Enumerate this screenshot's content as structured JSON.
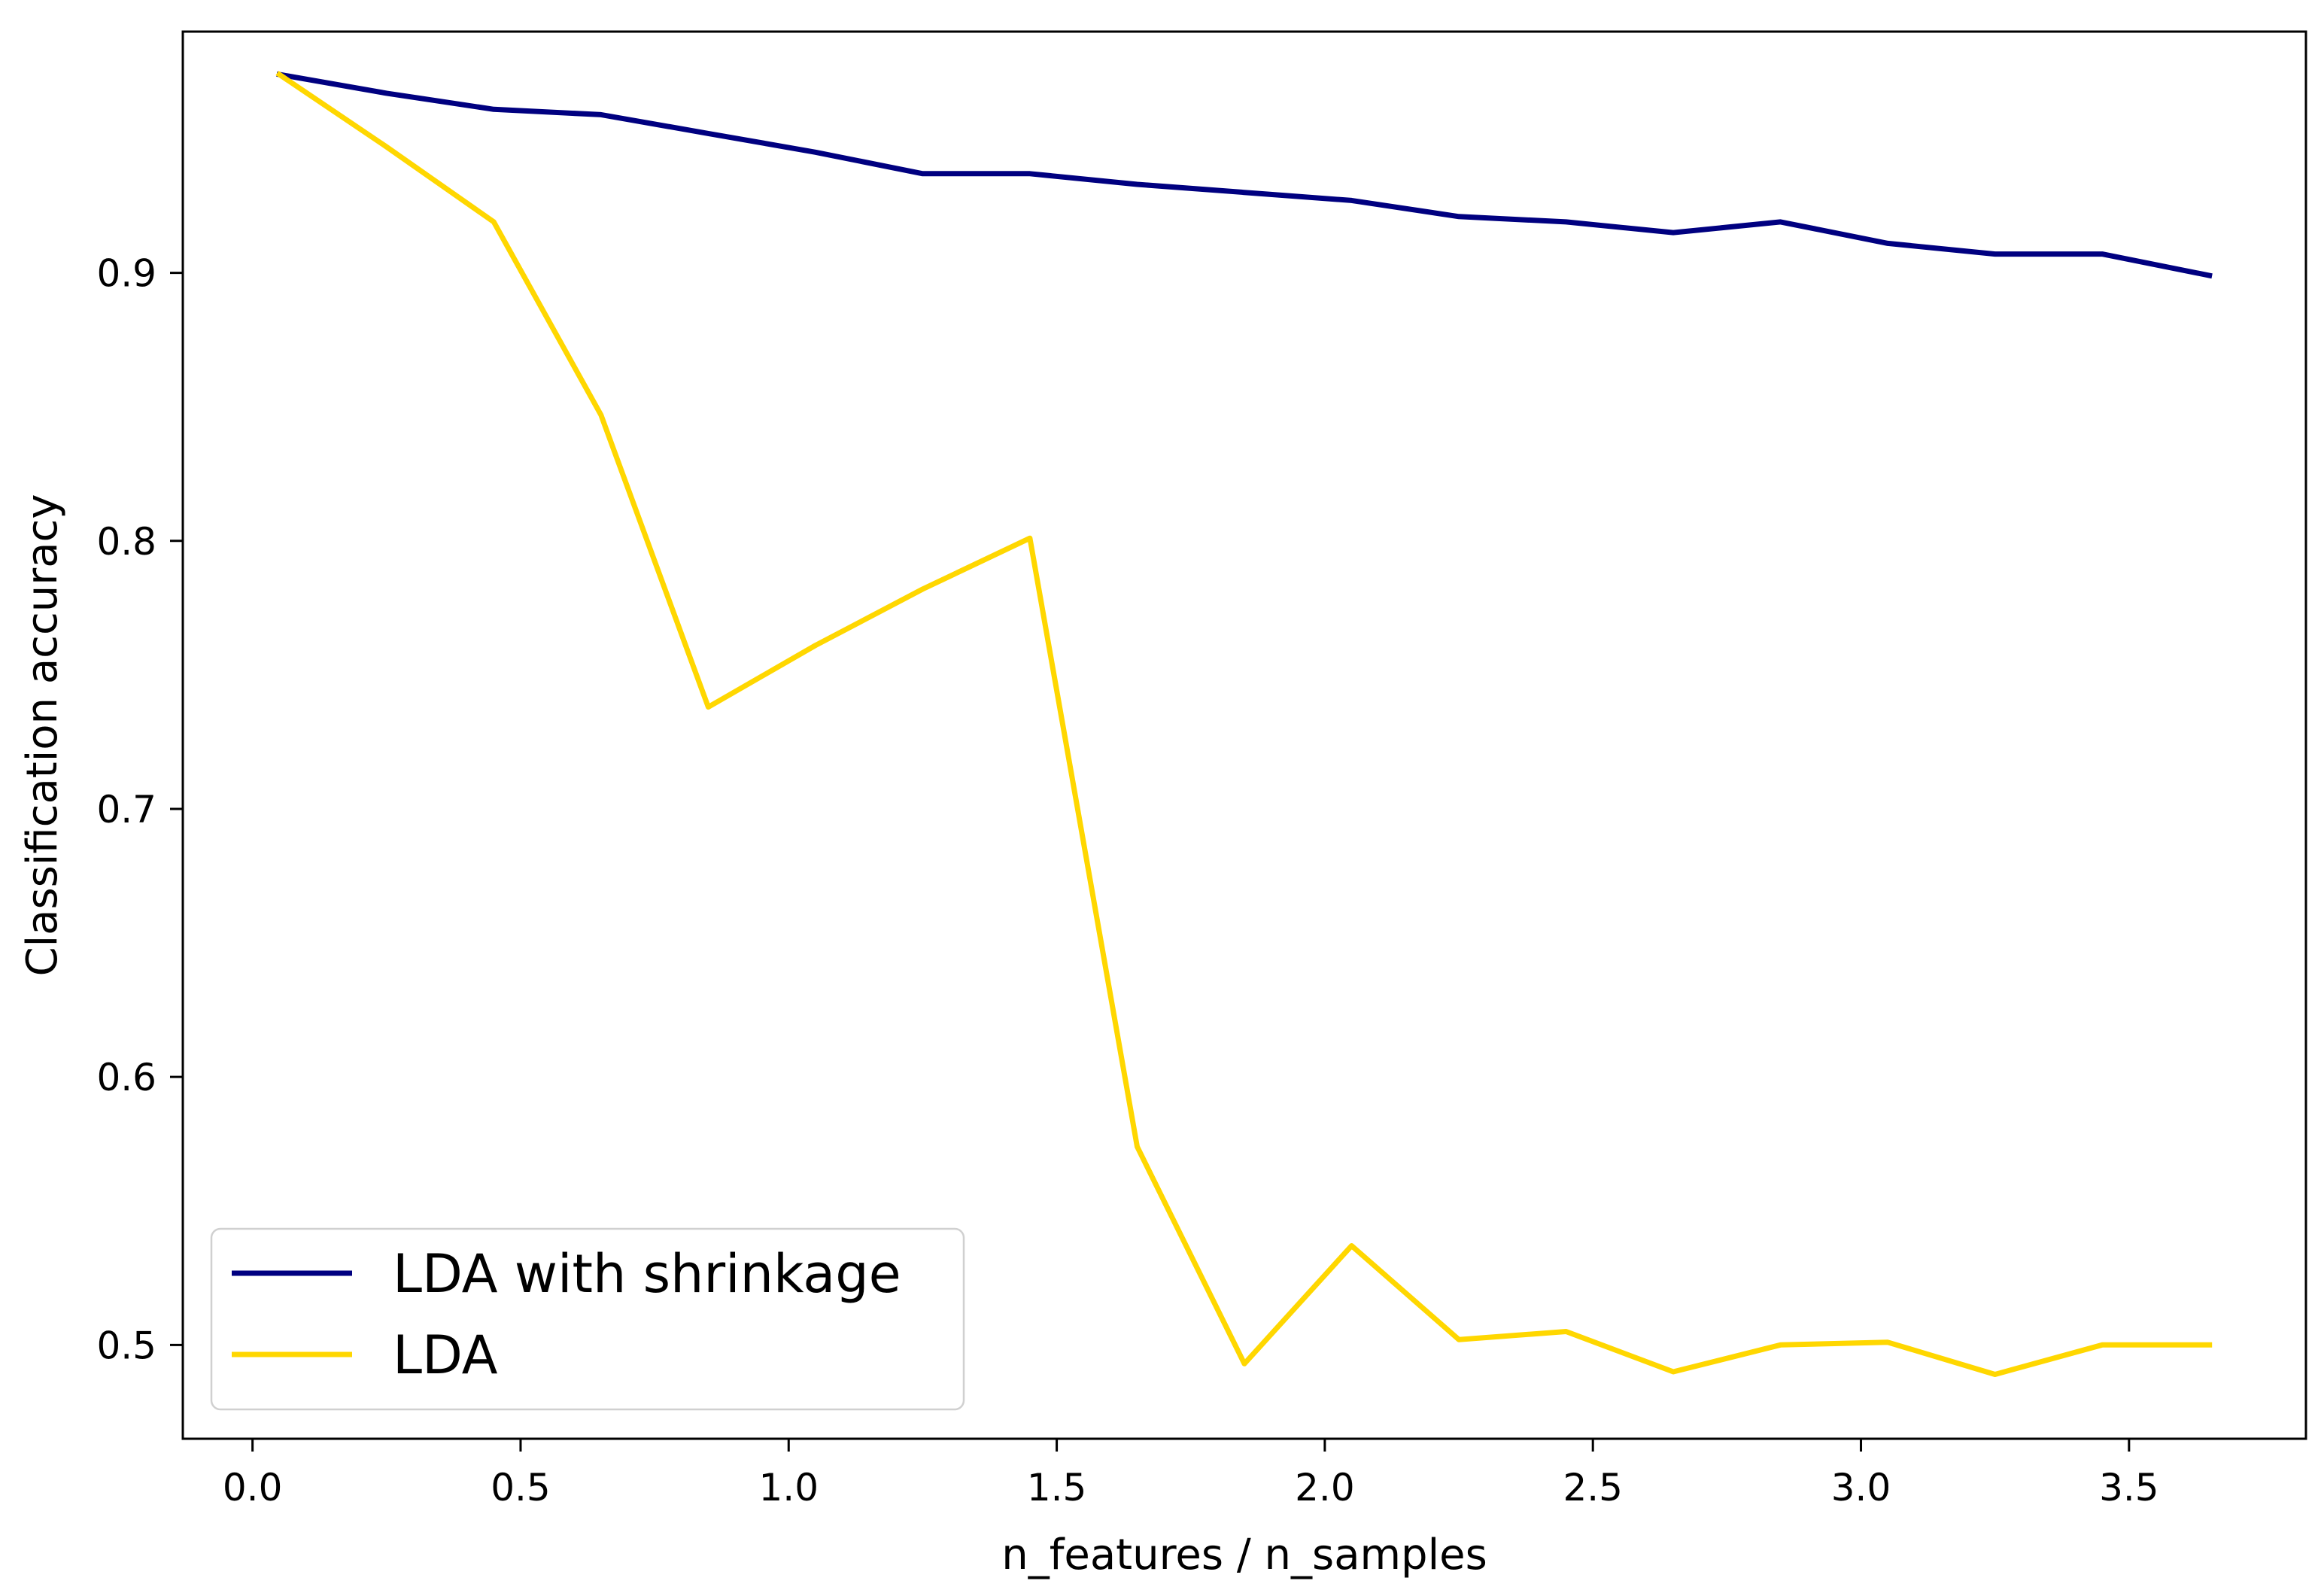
{
  "chart_data": {
    "type": "line",
    "title": "",
    "xlabel": "n_features / n_samples",
    "ylabel": "Classification accuracy",
    "xlim": [
      -0.13,
      3.83
    ],
    "ylim": [
      0.465,
      0.99
    ],
    "xticks": [
      0.0,
      0.5,
      1.0,
      1.5,
      2.0,
      2.5,
      3.0,
      3.5
    ],
    "xtick_labels": [
      "0.0",
      "0.5",
      "1.0",
      "1.5",
      "2.0",
      "2.5",
      "3.0",
      "3.5"
    ],
    "yticks": [
      0.5,
      0.6,
      0.7,
      0.8,
      0.9
    ],
    "ytick_labels": [
      "0.5",
      "0.6",
      "0.7",
      "0.8",
      "0.9"
    ],
    "grid": false,
    "legend_position": "lower-left",
    "x": [
      0.05,
      0.25,
      0.45,
      0.65,
      0.85,
      1.05,
      1.25,
      1.45,
      1.65,
      1.85,
      2.05,
      2.25,
      2.45,
      2.65,
      2.85,
      3.05,
      3.25,
      3.45,
      3.65
    ],
    "series": [
      {
        "name": "LDA with shrinkage",
        "color": "#000080",
        "values": [
          0.974,
          0.967,
          0.961,
          0.959,
          0.952,
          0.945,
          0.937,
          0.937,
          0.933,
          0.93,
          0.927,
          0.921,
          0.919,
          0.915,
          0.919,
          0.911,
          0.907,
          0.907,
          0.899
        ]
      },
      {
        "name": "LDA",
        "color": "#FFD700",
        "values": [
          0.974,
          0.947,
          0.919,
          0.847,
          0.738,
          0.761,
          0.782,
          0.801,
          0.574,
          0.493,
          0.537,
          0.502,
          0.505,
          0.49,
          0.5,
          0.501,
          0.489,
          0.5,
          0.5
        ]
      }
    ]
  }
}
